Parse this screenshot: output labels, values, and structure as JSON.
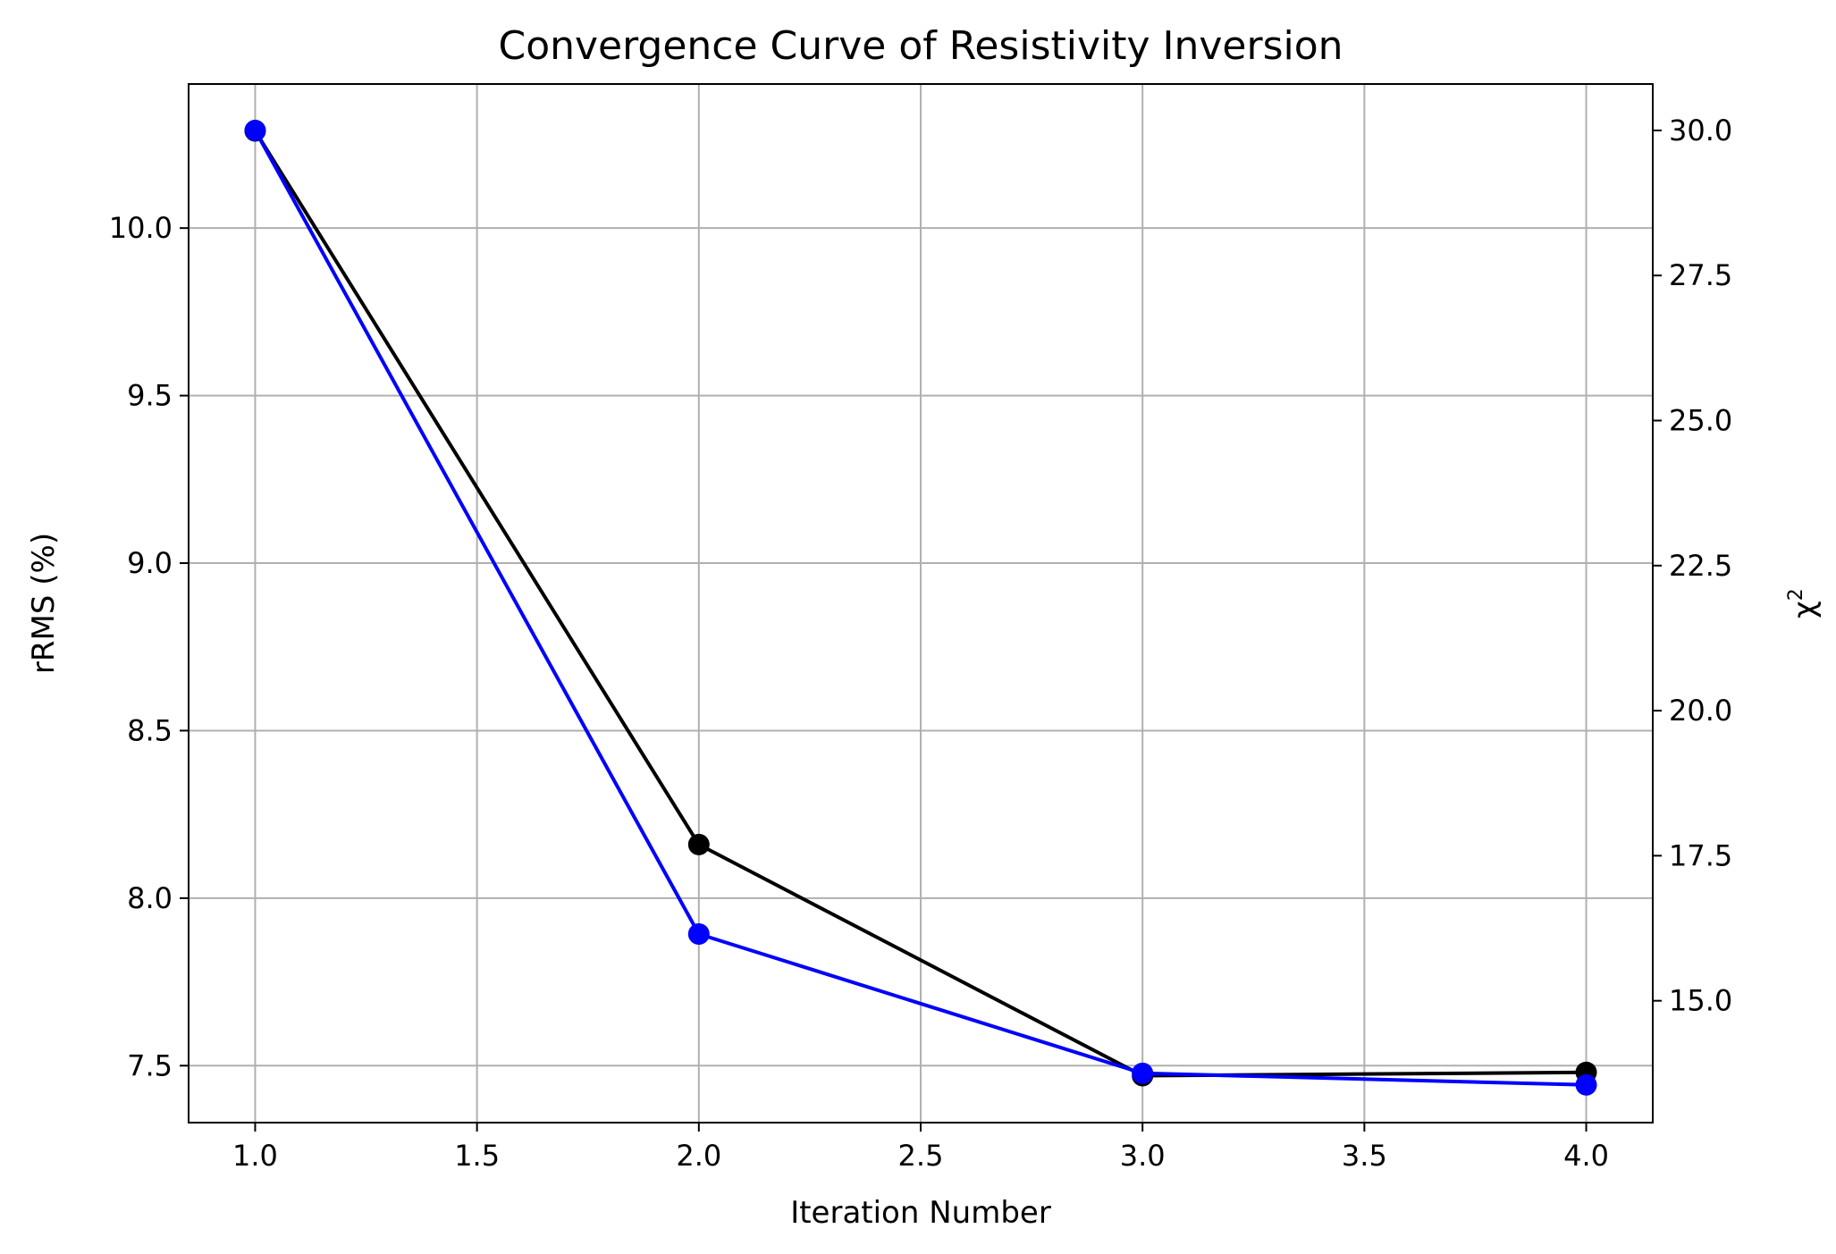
{
  "chart_data": {
    "type": "line",
    "title": "Convergence Curve of Resistivity Inversion",
    "xlabel": "Iteration Number",
    "ylabel_left": "rRMS (%)",
    "ylabel_right_base": "χ",
    "ylabel_right_sup": "2",
    "x": [
      1.0,
      2.0,
      3.0,
      4.0
    ],
    "xlim": [
      0.85,
      4.15
    ],
    "ylim_left": [
      7.33,
      10.43
    ],
    "ylim_right": [
      12.9,
      30.8
    ],
    "xticks": [
      1.0,
      1.5,
      2.0,
      2.5,
      3.0,
      3.5,
      4.0
    ],
    "xtick_labels": [
      "1.0",
      "1.5",
      "2.0",
      "2.5",
      "3.0",
      "3.5",
      "4.0"
    ],
    "yticks_left": [
      7.5,
      8.0,
      8.5,
      9.0,
      9.5,
      10.0
    ],
    "ytick_labels_left": [
      "7.5",
      "8.0",
      "8.5",
      "9.0",
      "9.5",
      "10.0"
    ],
    "yticks_right": [
      15.0,
      17.5,
      20.0,
      22.5,
      25.0,
      27.5,
      30.0
    ],
    "ytick_labels_right": [
      "15.0",
      "17.5",
      "20.0",
      "22.5",
      "25.0",
      "27.5",
      "30.0"
    ],
    "grid": true,
    "series": [
      {
        "axis": "left",
        "color": "#000000",
        "values": [
          10.29,
          8.16,
          7.47,
          7.48
        ]
      },
      {
        "axis": "right",
        "color": "#0000ff",
        "values": [
          30.0,
          16.15,
          13.75,
          13.55
        ]
      }
    ],
    "right_axis_label_color": "#0000ff"
  }
}
